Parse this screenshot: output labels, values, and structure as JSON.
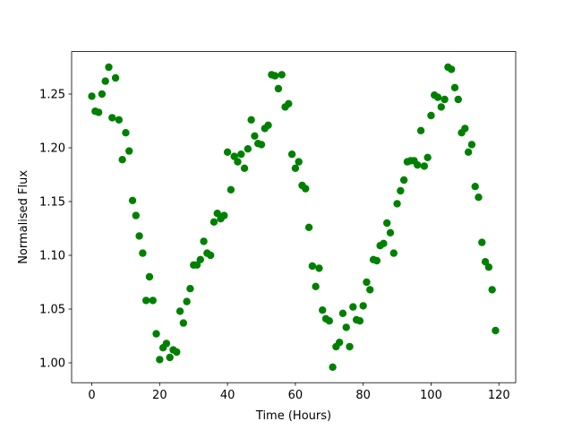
{
  "chart_data": {
    "type": "scatter",
    "xlabel": "Time (Hours)",
    "ylabel": "Normalised Flux",
    "color": "green",
    "x": [
      0,
      1,
      2,
      3,
      4,
      5,
      6,
      7,
      8,
      9,
      10,
      11,
      12,
      13,
      14,
      15,
      16,
      17,
      18,
      19,
      20,
      21,
      22,
      23,
      24,
      25,
      26,
      27,
      28,
      29,
      30,
      31,
      32,
      33,
      34,
      35,
      36,
      37,
      38,
      39,
      40,
      41,
      42,
      43,
      44,
      45,
      46,
      47,
      48,
      49,
      50,
      51,
      52,
      53,
      54,
      55,
      56,
      57,
      58,
      59,
      60,
      61,
      62,
      63,
      64,
      65,
      66,
      67,
      68,
      69,
      70,
      71,
      72,
      73,
      74,
      75,
      76,
      77,
      78,
      79,
      80,
      81,
      82,
      83,
      84,
      85,
      86,
      87,
      88,
      89,
      90,
      91,
      92,
      93,
      94,
      95,
      96,
      97,
      98,
      99,
      100,
      101,
      102,
      103,
      104,
      105,
      106,
      107,
      108,
      109,
      110,
      111,
      112,
      113,
      114,
      115,
      116,
      117,
      118,
      119
    ],
    "y": [
      1.248,
      1.234,
      1.233,
      1.25,
      1.262,
      1.275,
      1.228,
      1.265,
      1.226,
      1.189,
      1.214,
      1.197,
      1.151,
      1.137,
      1.118,
      1.102,
      1.058,
      1.08,
      1.058,
      1.027,
      1.003,
      1.014,
      1.018,
      1.005,
      1.012,
      1.01,
      1.048,
      1.037,
      1.057,
      1.069,
      1.091,
      1.091,
      1.096,
      1.113,
      1.102,
      1.1,
      1.131,
      1.139,
      1.134,
      1.137,
      1.196,
      1.161,
      1.192,
      1.187,
      1.194,
      1.181,
      1.199,
      1.226,
      1.211,
      1.204,
      1.203,
      1.218,
      1.221,
      1.268,
      1.267,
      1.255,
      1.268,
      1.238,
      1.241,
      1.194,
      1.181,
      1.187,
      1.165,
      1.162,
      1.126,
      1.09,
      1.071,
      1.088,
      1.049,
      1.041,
      1.039,
      0.996,
      1.015,
      1.019,
      1.046,
      1.033,
      1.015,
      1.052,
      1.04,
      1.039,
      1.053,
      1.075,
      1.068,
      1.096,
      1.095,
      1.109,
      1.111,
      1.13,
      1.121,
      1.102,
      1.148,
      1.16,
      1.17,
      1.187,
      1.188,
      1.188,
      1.184,
      1.216,
      1.183,
      1.191,
      1.23,
      1.249,
      1.247,
      1.238,
      1.245,
      1.275,
      1.273,
      1.256,
      1.245,
      1.214,
      1.218,
      1.196,
      1.203,
      1.164,
      1.154,
      1.112,
      1.094,
      1.089,
      1.068,
      1.03
    ],
    "xlim": [
      -5.95,
      124.95
    ],
    "ylim": [
      0.9815,
      1.2895
    ],
    "xticks": [
      0,
      20,
      40,
      60,
      80,
      100,
      120
    ],
    "yticks": [
      {
        "value": 1.0,
        "label": "1.00"
      },
      1.05,
      {
        "value": 1.1,
        "label": "1.10"
      },
      1.15,
      {
        "value": 1.2,
        "label": "1.20"
      },
      1.25
    ]
  }
}
